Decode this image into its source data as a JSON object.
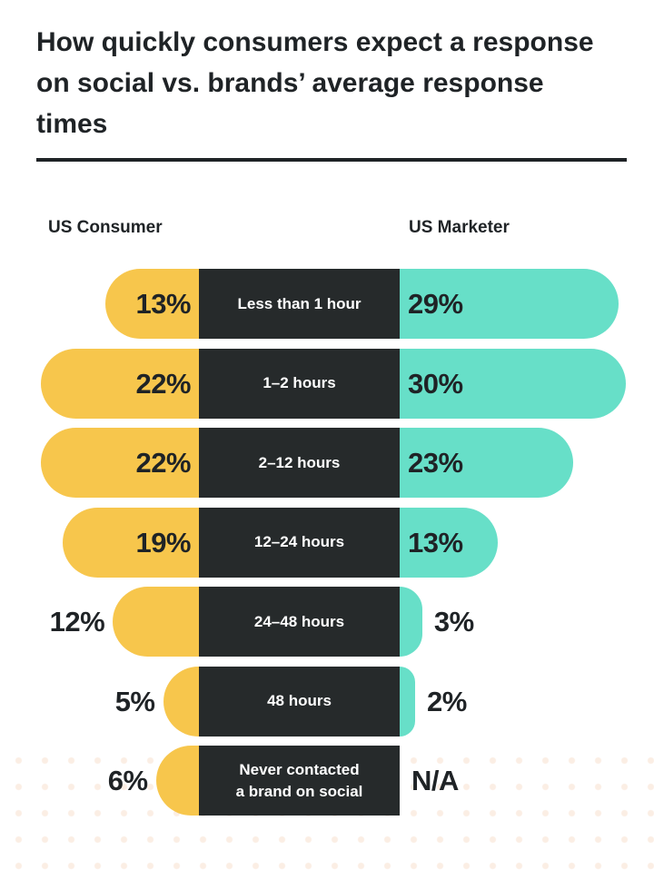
{
  "title": "How quickly consumers expect a response on social vs. brands’ average response times",
  "colors": {
    "consumer": "#f7c64c",
    "marketer": "#67dfc8",
    "category_bg": "#262a2b",
    "text": "#1f2326"
  },
  "chart_data": {
    "type": "bar",
    "title": "How quickly consumers expect a response on social vs. brands’ average response times",
    "categories": [
      "Less than 1 hour",
      "1–2 hours",
      "2–12 hours",
      "12–24 hours",
      "24–48 hours",
      "48 hours",
      "Never contacted\na brand on social"
    ],
    "series": [
      {
        "name": "US Consumer",
        "values": [
          13,
          22,
          22,
          19,
          12,
          5,
          6
        ],
        "labels": [
          "13%",
          "22%",
          "22%",
          "19%",
          "12%",
          "5%",
          "6%"
        ]
      },
      {
        "name": "US Marketer",
        "values": [
          29,
          30,
          23,
          13,
          3,
          2,
          null
        ],
        "labels": [
          "29%",
          "30%",
          "23%",
          "13%",
          "3%",
          "2%",
          "N/A"
        ]
      }
    ],
    "unit": "%",
    "xlabel": "",
    "ylabel": ""
  }
}
